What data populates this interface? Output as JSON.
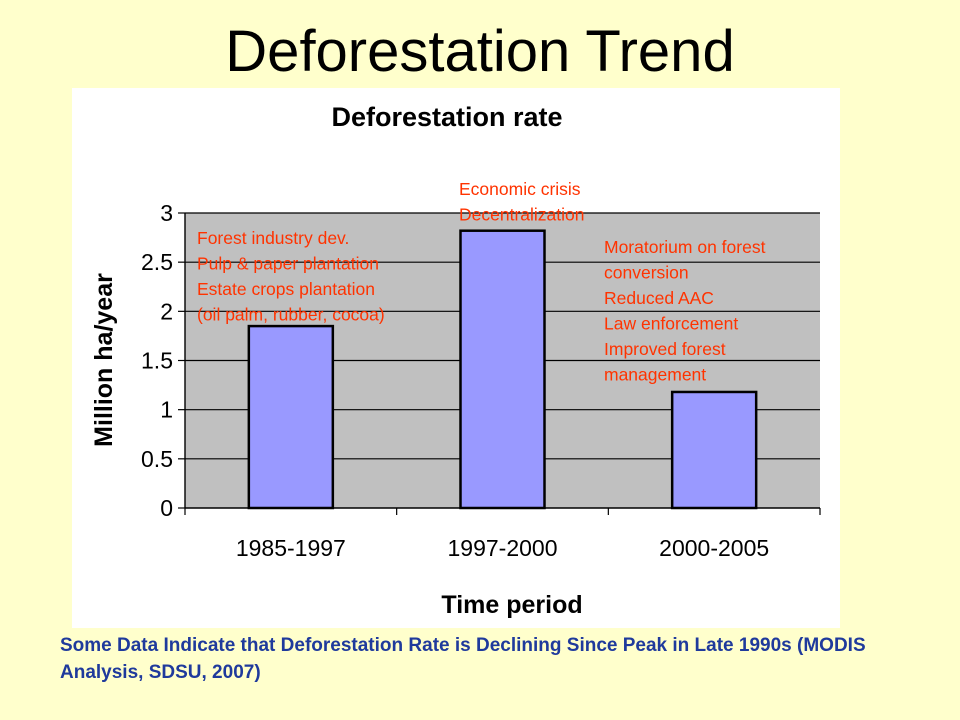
{
  "slide": {
    "title": "Deforestation Trend",
    "caption": "Some Data Indicate that Deforestation Rate is Declining Since Peak in Late 1990s (MODIS Analysis, SDSU, 2007)"
  },
  "chart_data": {
    "type": "bar",
    "title": "Deforestation rate",
    "xlabel": "Time period",
    "ylabel": "Million ha/year",
    "categories": [
      "1985-1997",
      "1997-2000",
      "2000-2005"
    ],
    "values": [
      1.85,
      2.82,
      1.18
    ],
    "ylim": [
      0,
      3
    ],
    "yticks": [
      "0",
      "0.5",
      "1",
      "1.5",
      "2",
      "2.5",
      "3"
    ],
    "grid": true,
    "legend": "none",
    "colors": {
      "bar": "#9999ff",
      "plot_bg": "#c0c0c0",
      "annotation": "#ff3300"
    },
    "annotations": [
      {
        "category": "1985-1997",
        "lines": [
          "Forest industry dev.",
          "Pulp & paper plantation",
          "Estate crops plantation",
          "(oil palm, rubber, cocoa)"
        ]
      },
      {
        "category": "1997-2000",
        "lines": [
          "Economic crisis",
          "Decentralization"
        ]
      },
      {
        "category": "2000-2005",
        "lines": [
          "Moratorium on forest",
          "conversion",
          "Reduced AAC",
          "Law enforcement",
          "Improved forest",
          "management"
        ]
      }
    ]
  }
}
